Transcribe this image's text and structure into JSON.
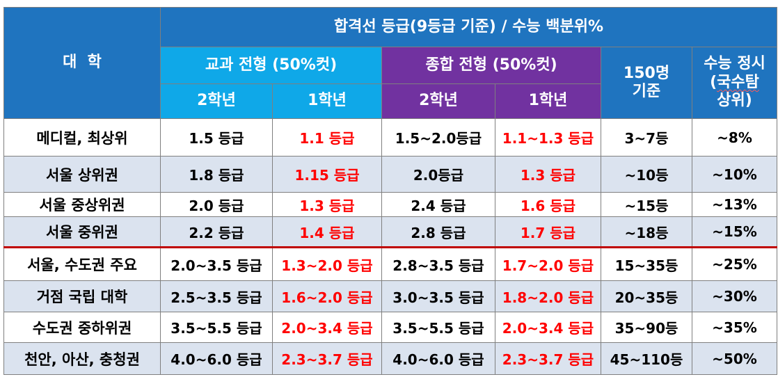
{
  "header": {
    "university": "대  학",
    "main_title": "합격선 등급(9등급 기준) / 수능 백분위%",
    "gyogwa_title": "교과 전형 (50%컷)",
    "jonghap_title": "종합 전형 (50%컷)",
    "grade2": "2학년",
    "grade1": "1학년",
    "rank150_line1": "150명",
    "rank150_line2": "기준",
    "suneung_line1": "수능 정시",
    "suneung_line2_pre": "(",
    "suneung_line2_word": "국수탐",
    "suneung_line3": "상위)"
  },
  "rows": [
    {
      "name": "메디컬, 최상위",
      "g2": "1.5 등급",
      "g1": "1.1 등급",
      "j2": "1.5~2.0등급",
      "j1": "1.1~1.3 등급",
      "rank": "3~7등",
      "pct": "~8%"
    },
    {
      "name": "서울 상위권",
      "g2": "1.8 등급",
      "g1": "1.15 등급",
      "j2": "2.0등급",
      "j1": "1.3 등급",
      "rank": "~10등",
      "pct": "~10%"
    },
    {
      "name": "서울 중상위권",
      "g2": "2.0 등급",
      "g1": "1.3 등급",
      "j2": "2.4 등급",
      "j1": "1.6 등급",
      "rank": "~15등",
      "pct": "~13%"
    },
    {
      "name": "서울 중위권",
      "g2": "2.2 등급",
      "g1": "1.4 등급",
      "j2": "2.8 등급",
      "j1": "1.7 등급",
      "rank": "~18등",
      "pct": "~15%"
    },
    {
      "name": "서울, 수도권 주요",
      "g2": "2.0~3.5 등급",
      "g1": "1.3~2.0 등급",
      "j2": "2.8~3.5 등급",
      "j1": "1.7~2.0 등급",
      "rank": "15~35등",
      "pct": "~25%"
    },
    {
      "name": "거점 국립 대학",
      "g2": "2.5~3.5 등급",
      "g1": "1.6~2.0 등급",
      "j2": "3.0~3.5 등급",
      "j1": "1.8~2.0 등급",
      "rank": "20~35등",
      "pct": "~30%"
    },
    {
      "name": "수도권 중하위권",
      "g2": "3.5~5.5 등급",
      "g1": "2.0~3.4 등급",
      "j2": "3.5~5.5 등급",
      "j1": "2.0~3.4 등급",
      "rank": "35~90등",
      "pct": "~35%"
    },
    {
      "name": "천안, 아산, 충청권",
      "g2": "4.0~6.0 등급",
      "g1": "2.3~3.7 등급",
      "j2": "4.0~6.0 등급",
      "j1": "2.3~3.7 등급",
      "rank": "45~110등",
      "pct": "~50%"
    }
  ],
  "colors": {
    "header_blue": "#1f74bf",
    "header_cyan": "#0fa8e8",
    "header_purple": "#7132a0",
    "row_shade": "#dbe3ef",
    "highlight_red": "#ff0000",
    "separator": "#c00000"
  }
}
